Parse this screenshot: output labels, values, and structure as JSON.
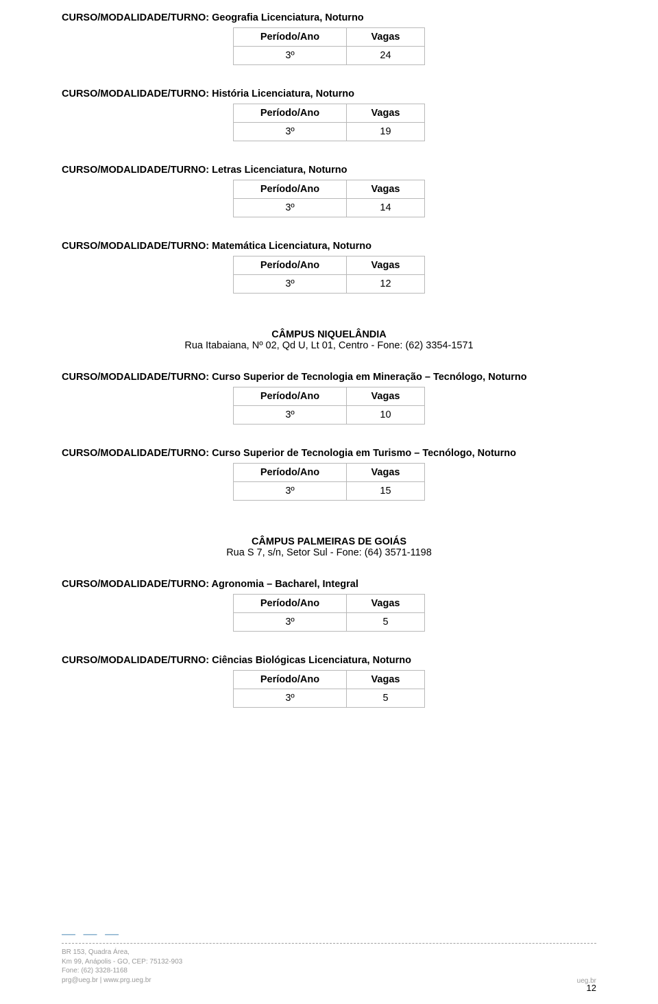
{
  "sections": [
    {
      "title": "CURSO/MODALIDADE/TURNO: Geografia Licenciatura, Noturno",
      "periodo": "3º",
      "vagas": "24"
    },
    {
      "title": "CURSO/MODALIDADE/TURNO: História Licenciatura, Noturno",
      "periodo": "3º",
      "vagas": "19"
    },
    {
      "title": "CURSO/MODALIDADE/TURNO: Letras Licenciatura, Noturno",
      "periodo": "3º",
      "vagas": "14"
    },
    {
      "title": "CURSO/MODALIDADE/TURNO: Matemática Licenciatura, Noturno",
      "periodo": "3º",
      "vagas": "12"
    }
  ],
  "campus1": {
    "name": "CÂMPUS NIQUELÂNDIA",
    "addr": "Rua Itabaiana, Nº 02, Qd U, Lt 01, Centro - Fone: (62) 3354-1571"
  },
  "sections2": [
    {
      "title": "CURSO/MODALIDADE/TURNO: Curso Superior de Tecnologia em  Mineração – Tecnólogo, Noturno",
      "periodo": "3º",
      "vagas": "10"
    },
    {
      "title": "CURSO/MODALIDADE/TURNO: Curso Superior de Tecnologia em Turismo – Tecnólogo, Noturno",
      "periodo": "3º",
      "vagas": "15"
    }
  ],
  "campus2": {
    "name": "CÂMPUS PALMEIRAS DE GOIÁS",
    "addr": "Rua S 7, s/n, Setor Sul - Fone: (64) 3571-1198"
  },
  "sections3": [
    {
      "title": "CURSO/MODALIDADE/TURNO: Agronomia – Bacharel, Integral",
      "periodo": "3º",
      "vagas": "5"
    },
    {
      "title": "CURSO/MODALIDADE/TURNO: Ciências Biológicas Licenciatura, Noturno",
      "periodo": "3º",
      "vagas": "5"
    }
  ],
  "headers": {
    "col1": "Período/Ano",
    "col2": "Vagas"
  },
  "footer": {
    "line1": "BR 153, Quadra Área,",
    "line2": "Km 99, Anápolis - GO, CEP: 75132-903",
    "line3": "Fone: (62) 3328-1168",
    "line4": "prg@ueg.br | www.prg.ueg.br",
    "right": "ueg.br"
  },
  "page_number": "12"
}
